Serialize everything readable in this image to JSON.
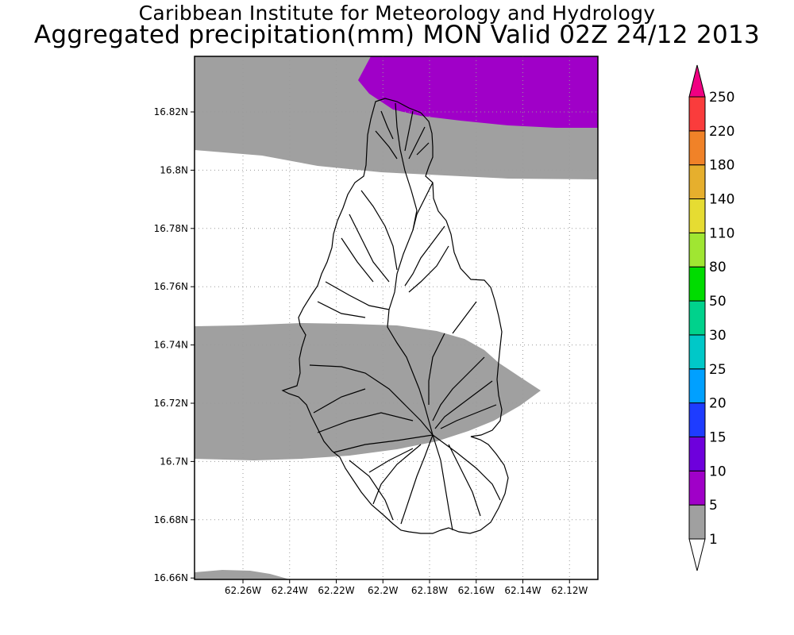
{
  "title": {
    "line1": "Caribbean Institute for Meteorology and Hydrology",
    "line2": "Aggregated precipitation(mm) MON Valid 02Z 24/12 2013"
  },
  "axes": {
    "lat_labels": [
      "16.82N",
      "16.8N",
      "16.78N",
      "16.76N",
      "16.74N",
      "16.72N",
      "16.7N",
      "16.68N",
      "16.66N"
    ],
    "lon_labels": [
      "62.26W",
      "62.24W",
      "62.22W",
      "62.2W",
      "62.18W",
      "62.16W",
      "62.14W",
      "62.12W"
    ]
  },
  "colorbar": {
    "labels": [
      "1",
      "5",
      "10",
      "15",
      "20",
      "25",
      "30",
      "50",
      "80",
      "110",
      "140",
      "180",
      "220",
      "250"
    ],
    "colors": [
      "#ffffff",
      "#a0a0a0",
      "#a000c8",
      "#6e00dc",
      "#1e3cff",
      "#00a0ff",
      "#00c8c8",
      "#00d28c",
      "#00dc00",
      "#a0e632",
      "#e6dc32",
      "#e6af2d",
      "#f08228",
      "#fa3c3c",
      "#f00082"
    ]
  },
  "map": {
    "fill_colors": {
      "1-5": "#a0a0a0",
      "5-10": "#a000c8"
    }
  }
}
